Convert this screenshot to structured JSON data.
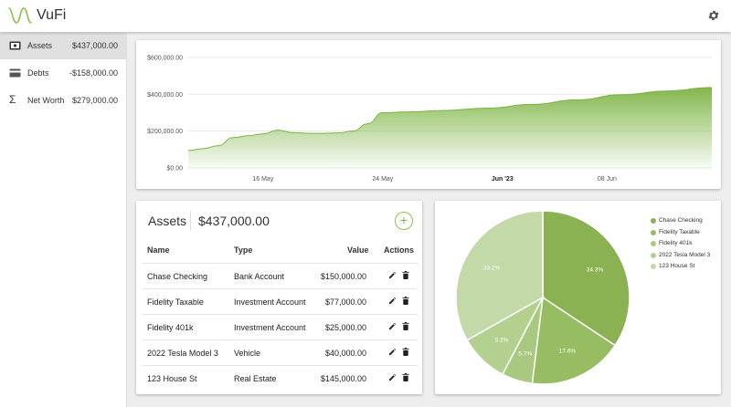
{
  "app": {
    "title": "VuFi",
    "logo_icon": "wave-logo-icon",
    "settings_icon": "gear-icon"
  },
  "sidebar": {
    "items": [
      {
        "label": "Assets",
        "value": "$437,000.00",
        "icon": "wallet-icon",
        "active": true
      },
      {
        "label": "Debts",
        "value": "-$158,000.00",
        "icon": "credit-card-icon",
        "active": false
      },
      {
        "label": "Net Worth",
        "value": "$279,000.00",
        "icon": "sigma-icon",
        "active": false
      }
    ]
  },
  "colors": {
    "accent": "#7cb342",
    "pie": [
      "#8bb252",
      "#96bd62",
      "#a8c97f",
      "#b4d08e",
      "#c3d9a8"
    ]
  },
  "area_chart": {
    "type": "area",
    "y_ticks": [
      "$600,000.00",
      "$400,000.00",
      "$200,000.00",
      "$0.00"
    ],
    "x_ticks": [
      "16 May",
      "24 May",
      "Jun '23",
      "08 Jun"
    ],
    "x_range": [
      "2023-05-11",
      "2023-06-15"
    ],
    "ylim": [
      0,
      600000
    ],
    "x": [
      "2023-05-11",
      "2023-05-12",
      "2023-05-13",
      "2023-05-14",
      "2023-05-15",
      "2023-05-16",
      "2023-05-17",
      "2023-05-18",
      "2023-05-19",
      "2023-05-20",
      "2023-05-21",
      "2023-05-22",
      "2023-05-23",
      "2023-05-24",
      "2023-05-26",
      "2023-05-28",
      "2023-05-31",
      "2023-06-03",
      "2023-06-06",
      "2023-06-09",
      "2023-06-12",
      "2023-06-15"
    ],
    "values": [
      95000,
      105000,
      120000,
      165000,
      175000,
      185000,
      205000,
      192000,
      188000,
      188000,
      190000,
      200000,
      240000,
      300000,
      305000,
      312000,
      325000,
      345000,
      370000,
      398000,
      418000,
      437000
    ]
  },
  "assets_table": {
    "title": "Assets",
    "total": "$437,000.00",
    "add_label": "+",
    "headers": {
      "name": "Name",
      "type": "Type",
      "value": "Value",
      "actions": "Actions"
    },
    "rows": [
      {
        "name": "Chase Checking",
        "type": "Bank Account",
        "value": "$150,000.00"
      },
      {
        "name": "Fidelity Taxable",
        "type": "Investment Account",
        "value": "$77,000.00"
      },
      {
        "name": "Fidelity 401k",
        "type": "Investment Account",
        "value": "$25,000.00"
      },
      {
        "name": "2022 Tesla Model 3",
        "type": "Vehicle",
        "value": "$40,000.00"
      },
      {
        "name": "123 House St",
        "type": "Real Estate",
        "value": "$145,000.00"
      }
    ],
    "edit_icon": "pencil-icon",
    "delete_icon": "trash-icon"
  },
  "chart_data": {
    "type": "pie",
    "categories": [
      "Chase Checking",
      "Fidelity Taxable",
      "Fidelity 401k",
      "2022 Tesla Model 3",
      "123 House St"
    ],
    "values": [
      150000,
      77000,
      25000,
      40000,
      145000
    ],
    "labels": [
      "34.3%",
      "17.6%",
      "5.7%",
      "9.2%",
      "33.2%"
    ],
    "legend_position": "top-right"
  }
}
